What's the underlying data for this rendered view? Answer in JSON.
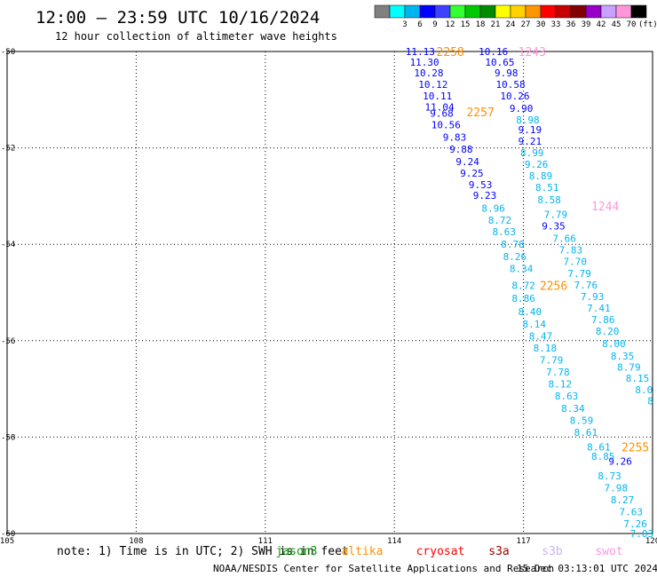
{
  "header": {
    "title": "12:00 – 23:59 UTC 10/16/2024",
    "subtitle": "12 hour collection of altimeter wave heights"
  },
  "color_scale": {
    "unit_label": "(ft)",
    "swatches": [
      {
        "label": "",
        "color": "#808080"
      },
      {
        "label": "3",
        "color": "#00ffff"
      },
      {
        "label": "6",
        "color": "#00b4f0"
      },
      {
        "label": "9",
        "color": "#0000ff"
      },
      {
        "label": "12",
        "color": "#4040ff"
      },
      {
        "label": "15",
        "color": "#33ff33"
      },
      {
        "label": "18",
        "color": "#00c800"
      },
      {
        "label": "21",
        "color": "#008c00"
      },
      {
        "label": "24",
        "color": "#ffff00"
      },
      {
        "label": "27",
        "color": "#ffd200"
      },
      {
        "label": "30",
        "color": "#ff9600"
      },
      {
        "label": "33",
        "color": "#ff0000"
      },
      {
        "label": "36",
        "color": "#c80000"
      },
      {
        "label": "39",
        "color": "#820000"
      },
      {
        "label": "42",
        "color": "#9600c8"
      },
      {
        "label": "45",
        "color": "#c8a0ff"
      },
      {
        "label": "70",
        "color": "#ff96dc"
      },
      {
        "label": "",
        "color": "#000000"
      }
    ]
  },
  "satellites": {
    "items": [
      {
        "name": "jason3",
        "color": "#00a000"
      },
      {
        "name": "altika",
        "color": "#ff9000"
      },
      {
        "name": "cryosat",
        "color": "#ff0000"
      },
      {
        "name": "s3a",
        "color": "#a00000"
      },
      {
        "name": "s3b",
        "color": "#c8b4f0"
      },
      {
        "name": "swot",
        "color": "#ff96dc"
      }
    ]
  },
  "footer": {
    "note": "note: 1) Time is in UTC; 2) SWH is in feet",
    "credit": "NOAA/NESDIS Center for Satellite Applications and Research",
    "timestamp": "15 Dec 03:13:01 UTC 2024"
  },
  "chart_data": {
    "type": "scatter",
    "title": "12:00 – 23:59 UTC 10/16/2024",
    "subtitle": "12 hour collection of altimeter wave heights",
    "xlabel": "",
    "ylabel": "",
    "xlim": [
      105,
      120
    ],
    "ylim": [
      -60,
      -50
    ],
    "x_ticks": [
      105,
      108,
      111,
      114,
      117,
      120
    ],
    "y_ticks": [
      -50,
      -52,
      -54,
      -56,
      -58,
      -60
    ],
    "x_tick_labels": [
      "105",
      "108",
      "111",
      "114",
      "117",
      "120"
    ],
    "y_tick_labels": [
      "-50",
      "-52",
      "-54",
      "-56",
      "-58",
      "-60"
    ],
    "grid": true,
    "pass_labels": [
      {
        "text": "2258",
        "lon": 115.3,
        "lat": -50.0,
        "color": "#ff9000"
      },
      {
        "text": "1243",
        "lon": 117.2,
        "lat": -50.0,
        "color": "#ff96dc"
      },
      {
        "text": "2257",
        "lon": 116.0,
        "lat": -51.25,
        "color": "#ff9000"
      },
      {
        "text": "1244",
        "lon": 118.9,
        "lat": -53.2,
        "color": "#ff96dc"
      },
      {
        "text": "2256",
        "lon": 117.7,
        "lat": -54.85,
        "color": "#ff9000"
      },
      {
        "text": "2255",
        "lon": 119.6,
        "lat": -58.2,
        "color": "#ff9000"
      }
    ],
    "series": [
      {
        "color": "#0000ff",
        "points": [
          {
            "lon": 114.6,
            "lat": -50.0,
            "v": "11.13"
          },
          {
            "lon": 114.7,
            "lat": -50.22,
            "v": "11.30"
          },
          {
            "lon": 114.8,
            "lat": -50.44,
            "v": "10.28"
          },
          {
            "lon": 114.9,
            "lat": -50.68,
            "v": "10.12"
          },
          {
            "lon": 115.0,
            "lat": -50.92,
            "v": "10.11"
          },
          {
            "lon": 115.05,
            "lat": -51.15,
            "v": "11.04"
          },
          {
            "lon": 115.1,
            "lat": -51.28,
            "v": "9.68"
          },
          {
            "lon": 115.2,
            "lat": -51.52,
            "v": "10.56"
          },
          {
            "lon": 115.4,
            "lat": -51.78,
            "v": "9.83"
          },
          {
            "lon": 115.55,
            "lat": -52.03,
            "v": "9.88"
          },
          {
            "lon": 115.7,
            "lat": -52.28,
            "v": "9.24"
          },
          {
            "lon": 115.8,
            "lat": -52.52,
            "v": "9.25"
          },
          {
            "lon": 116.0,
            "lat": -52.76,
            "v": "9.53"
          },
          {
            "lon": 116.1,
            "lat": -52.98,
            "v": "9.23"
          },
          {
            "lon": 116.3,
            "lat": -50.0,
            "v": "10.16"
          },
          {
            "lon": 116.45,
            "lat": -50.22,
            "v": "10.65"
          },
          {
            "lon": 116.6,
            "lat": -50.44,
            "v": "9.98"
          },
          {
            "lon": 116.7,
            "lat": -50.68,
            "v": "10.58"
          },
          {
            "lon": 116.8,
            "lat": -50.92,
            "v": "10.26"
          },
          {
            "lon": 116.95,
            "lat": -51.18,
            "v": "9.90"
          },
          {
            "lon": 117.15,
            "lat": -51.62,
            "v": "9.19"
          },
          {
            "lon": 117.15,
            "lat": -51.86,
            "v": "9.21"
          },
          {
            "lon": 117.7,
            "lat": -53.62,
            "v": "9.35"
          },
          {
            "lon": 119.25,
            "lat": -58.5,
            "v": "9.26"
          }
        ]
      },
      {
        "color": "#00b4f0",
        "points": [
          {
            "lon": 116.3,
            "lat": -53.25,
            "v": "8.96"
          },
          {
            "lon": 116.45,
            "lat": -53.5,
            "v": "8.72"
          },
          {
            "lon": 116.55,
            "lat": -53.74,
            "v": "8.63"
          },
          {
            "lon": 116.75,
            "lat": -54.0,
            "v": "8.78"
          },
          {
            "lon": 116.8,
            "lat": -54.25,
            "v": "8.26"
          },
          {
            "lon": 116.95,
            "lat": -54.5,
            "v": "8.34"
          },
          {
            "lon": 117.0,
            "lat": -54.85,
            "v": "8.72"
          },
          {
            "lon": 117.0,
            "lat": -55.12,
            "v": "8.86"
          },
          {
            "lon": 117.15,
            "lat": -55.4,
            "v": "8.40"
          },
          {
            "lon": 117.25,
            "lat": -55.65,
            "v": "8.14"
          },
          {
            "lon": 117.4,
            "lat": -55.9,
            "v": "8.47"
          },
          {
            "lon": 117.5,
            "lat": -56.15,
            "v": "8.18"
          },
          {
            "lon": 117.65,
            "lat": -56.4,
            "v": "7.79"
          },
          {
            "lon": 117.8,
            "lat": -56.65,
            "v": "7.78"
          },
          {
            "lon": 117.85,
            "lat": -56.9,
            "v": "8.12"
          },
          {
            "lon": 118.0,
            "lat": -57.15,
            "v": "8.63"
          },
          {
            "lon": 118.15,
            "lat": -57.4,
            "v": "8.34"
          },
          {
            "lon": 118.35,
            "lat": -57.65,
            "v": "8.59"
          },
          {
            "lon": 118.45,
            "lat": -57.9,
            "v": "8.61"
          },
          {
            "lon": 118.75,
            "lat": -58.2,
            "v": "8.61"
          },
          {
            "lon": 118.85,
            "lat": -58.4,
            "v": "8.85"
          },
          {
            "lon": 119.0,
            "lat": -58.8,
            "v": "8.73"
          },
          {
            "lon": 119.15,
            "lat": -59.05,
            "v": "7.98"
          },
          {
            "lon": 119.3,
            "lat": -59.3,
            "v": "8.27"
          },
          {
            "lon": 119.5,
            "lat": -59.55,
            "v": "7.63"
          },
          {
            "lon": 119.6,
            "lat": -59.8,
            "v": "7.26"
          },
          {
            "lon": 119.75,
            "lat": -60.0,
            "v": "7.03"
          },
          {
            "lon": 117.1,
            "lat": -51.42,
            "v": "8.98"
          },
          {
            "lon": 117.2,
            "lat": -52.1,
            "v": "8.99"
          },
          {
            "lon": 117.3,
            "lat": -52.34,
            "v": "9.26"
          },
          {
            "lon": 117.4,
            "lat": -52.58,
            "v": "8.89"
          },
          {
            "lon": 117.55,
            "lat": -52.82,
            "v": "8.51"
          },
          {
            "lon": 117.6,
            "lat": -53.08,
            "v": "8.58"
          },
          {
            "lon": 117.75,
            "lat": -53.38,
            "v": "7.79"
          },
          {
            "lon": 117.95,
            "lat": -53.88,
            "v": "7.66"
          },
          {
            "lon": 118.1,
            "lat": -54.12,
            "v": "7.83"
          },
          {
            "lon": 118.2,
            "lat": -54.36,
            "v": "7.70"
          },
          {
            "lon": 118.3,
            "lat": -54.6,
            "v": "7.79"
          },
          {
            "lon": 118.45,
            "lat": -54.84,
            "v": "7.76"
          },
          {
            "lon": 118.6,
            "lat": -55.08,
            "v": "7.93"
          },
          {
            "lon": 118.75,
            "lat": -55.32,
            "v": "7.41"
          },
          {
            "lon": 118.85,
            "lat": -55.56,
            "v": "7.86"
          },
          {
            "lon": 118.95,
            "lat": -55.8,
            "v": "8.20"
          },
          {
            "lon": 119.1,
            "lat": -56.06,
            "v": "8.00"
          },
          {
            "lon": 119.3,
            "lat": -56.32,
            "v": "8.35"
          },
          {
            "lon": 119.45,
            "lat": -56.55,
            "v": "8.79"
          },
          {
            "lon": 119.65,
            "lat": -56.78,
            "v": "8.15"
          },
          {
            "lon": 119.8,
            "lat": -57.02,
            "v": "8.0"
          },
          {
            "lon": 119.95,
            "lat": -57.25,
            "v": "8"
          }
        ]
      }
    ]
  }
}
